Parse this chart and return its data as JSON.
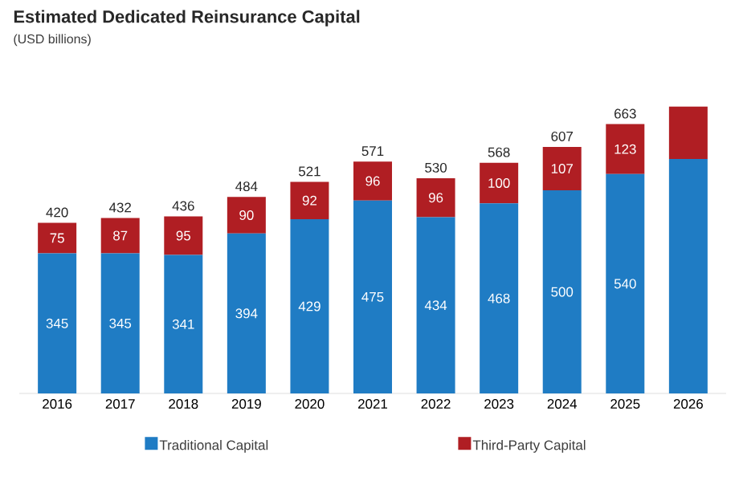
{
  "chart_data": {
    "type": "bar",
    "title": "Estimated Dedicated Reinsurance Capital",
    "subtitle": "(USD billions)",
    "categories": [
      "2016",
      "2017",
      "2018",
      "2019",
      "2020",
      "2021",
      "2022",
      "2023",
      "2024",
      "2025",
      "2026"
    ],
    "stacked": true,
    "legend": "bottom",
    "series": [
      {
        "name": "Traditional Capital",
        "color": "#1f7cc4",
        "values": [
          345,
          345,
          341,
          394,
          429,
          475,
          434,
          468,
          500,
          540,
          577
        ],
        "value_labels": [
          "345",
          "345",
          "341",
          "394",
          "429",
          "475",
          "434",
          "468",
          "500",
          "540",
          null
        ]
      },
      {
        "name": "Third-Party Capital",
        "color": "#b01e23",
        "values": [
          75,
          87,
          95,
          90,
          92,
          96,
          96,
          100,
          107,
          123,
          129
        ],
        "value_labels": [
          "75",
          "87",
          "95",
          "90",
          "92",
          "96",
          "96",
          "100",
          "107",
          "123",
          null
        ]
      }
    ],
    "totals": [
      "420",
      "432",
      "436",
      "484",
      "521",
      "571",
      "530",
      "568",
      "607",
      "663",
      null
    ]
  }
}
